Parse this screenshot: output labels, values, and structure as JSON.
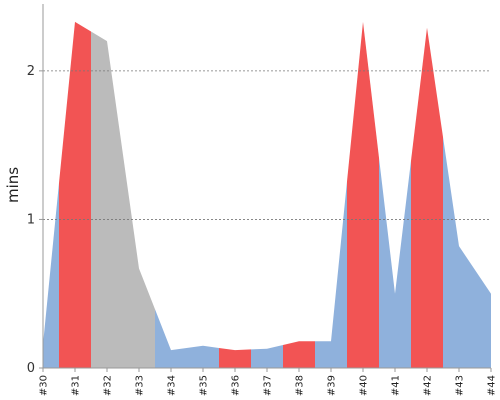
{
  "chart_data": {
    "type": "area",
    "title": "",
    "xlabel": "",
    "ylabel": "mins",
    "x": [
      "#30",
      "#31",
      "#32",
      "#33",
      "#34",
      "#35",
      "#36",
      "#37",
      "#38",
      "#39",
      "#40",
      "#41",
      "#42",
      "#43",
      "#44"
    ],
    "values": [
      0.16,
      2.33,
      2.2,
      0.67,
      0.12,
      0.15,
      0.12,
      0.13,
      0.18,
      0.18,
      2.33,
      0.5,
      2.29,
      0.82,
      0.5
    ],
    "segments": [
      {
        "from": "#30",
        "to": "#30.5",
        "status": "default"
      },
      {
        "from": "#30.5",
        "to": "#31.5",
        "status": "highlight"
      },
      {
        "from": "#31.5",
        "to": "#33.5",
        "status": "muted"
      },
      {
        "from": "#33.5",
        "to": "#35.5",
        "status": "default"
      },
      {
        "from": "#35.5",
        "to": "#36.5",
        "status": "highlight"
      },
      {
        "from": "#36.5",
        "to": "#37.5",
        "status": "default"
      },
      {
        "from": "#37.5",
        "to": "#38.5",
        "status": "highlight"
      },
      {
        "from": "#38.5",
        "to": "#39.5",
        "status": "default"
      },
      {
        "from": "#39.5",
        "to": "#40.5",
        "status": "highlight"
      },
      {
        "from": "#40.5",
        "to": "#41.5",
        "status": "default"
      },
      {
        "from": "#41.5",
        "to": "#42.5",
        "status": "highlight"
      },
      {
        "from": "#42.5",
        "to": "#44",
        "status": "default"
      }
    ],
    "ylim": [
      0,
      2.45
    ],
    "yticks": [
      0,
      1,
      2
    ],
    "grid": "horizontal-dashed",
    "colors": {
      "default": "#8fb1dc",
      "highlight": "#f25454",
      "muted": "#bbbbbb",
      "grid": "#777777",
      "axis": "#999999"
    }
  }
}
